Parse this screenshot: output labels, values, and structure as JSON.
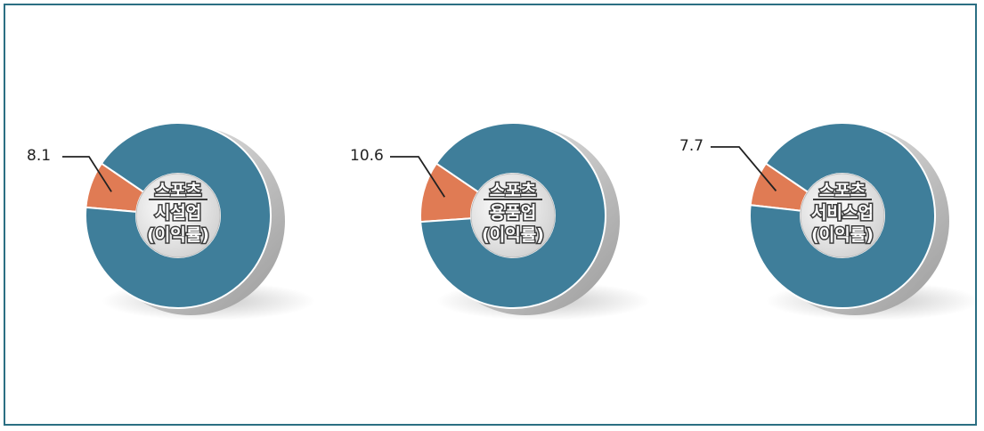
{
  "chart_data": [
    {
      "type": "pie",
      "label_lines": [
        "스포츠",
        "시설업",
        "(이익률)"
      ],
      "value_label": "8.1",
      "slices": [
        {
          "value": 8.1
        },
        {
          "value": 91.9
        }
      ]
    },
    {
      "type": "pie",
      "label_lines": [
        "스포츠",
        "용품업",
        "(이익률)"
      ],
      "value_label": "10.6",
      "slices": [
        {
          "value": 10.6
        },
        {
          "value": 89.4
        }
      ]
    },
    {
      "type": "pie",
      "label_lines": [
        "스포츠",
        "서비스업",
        "(이익률)"
      ],
      "value_label": "7.7",
      "slices": [
        {
          "value": 7.7
        },
        {
          "value": 92.3
        }
      ]
    }
  ],
  "colors": {
    "highlight": "#e07b54",
    "remainder": "#3f7e9a",
    "border": "#2b6f83"
  }
}
